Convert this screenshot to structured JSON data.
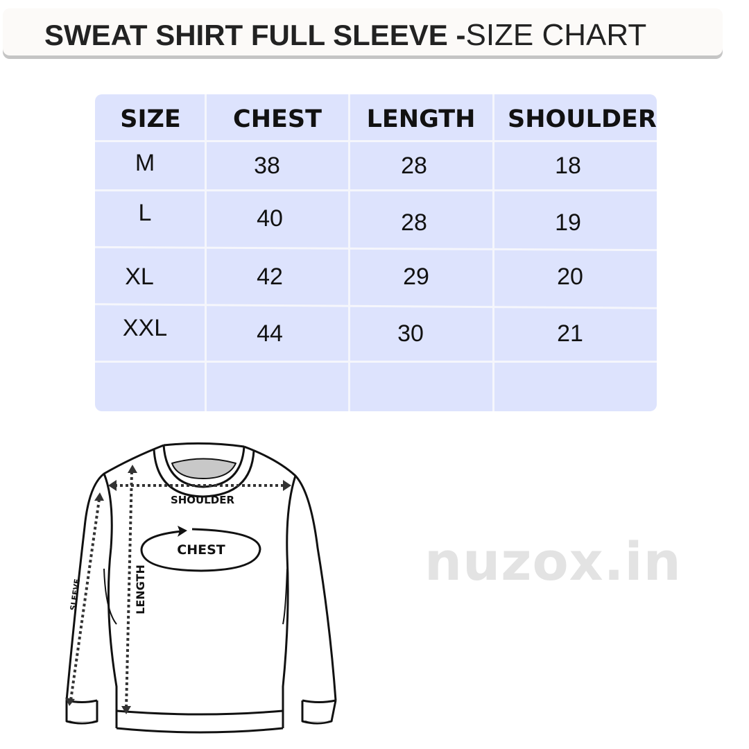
{
  "title": {
    "bold": "SWEAT SHIRT FULL SLEEVE -",
    "regular": "SIZE CHART"
  },
  "table": {
    "headers": [
      "SIZE",
      "CHEST",
      "LENGTH",
      "SHOULDER"
    ],
    "rows": [
      [
        "M",
        "38",
        "28",
        "18"
      ],
      [
        "L",
        "40",
        "28",
        "19"
      ],
      [
        "XL",
        "42",
        "29",
        "20"
      ],
      [
        "XXL",
        "44",
        "30",
        "21"
      ]
    ]
  },
  "diagram": {
    "shoulder": "SHOULDER",
    "chest": "CHEST",
    "length": "LENGTH",
    "sleeve": "SLEEVE"
  },
  "watermark": "nuzox.in",
  "colors": {
    "table_bg": "#dde3fd",
    "banner_bg": "#fcfaf8",
    "watermark": "#e3e3e3"
  }
}
